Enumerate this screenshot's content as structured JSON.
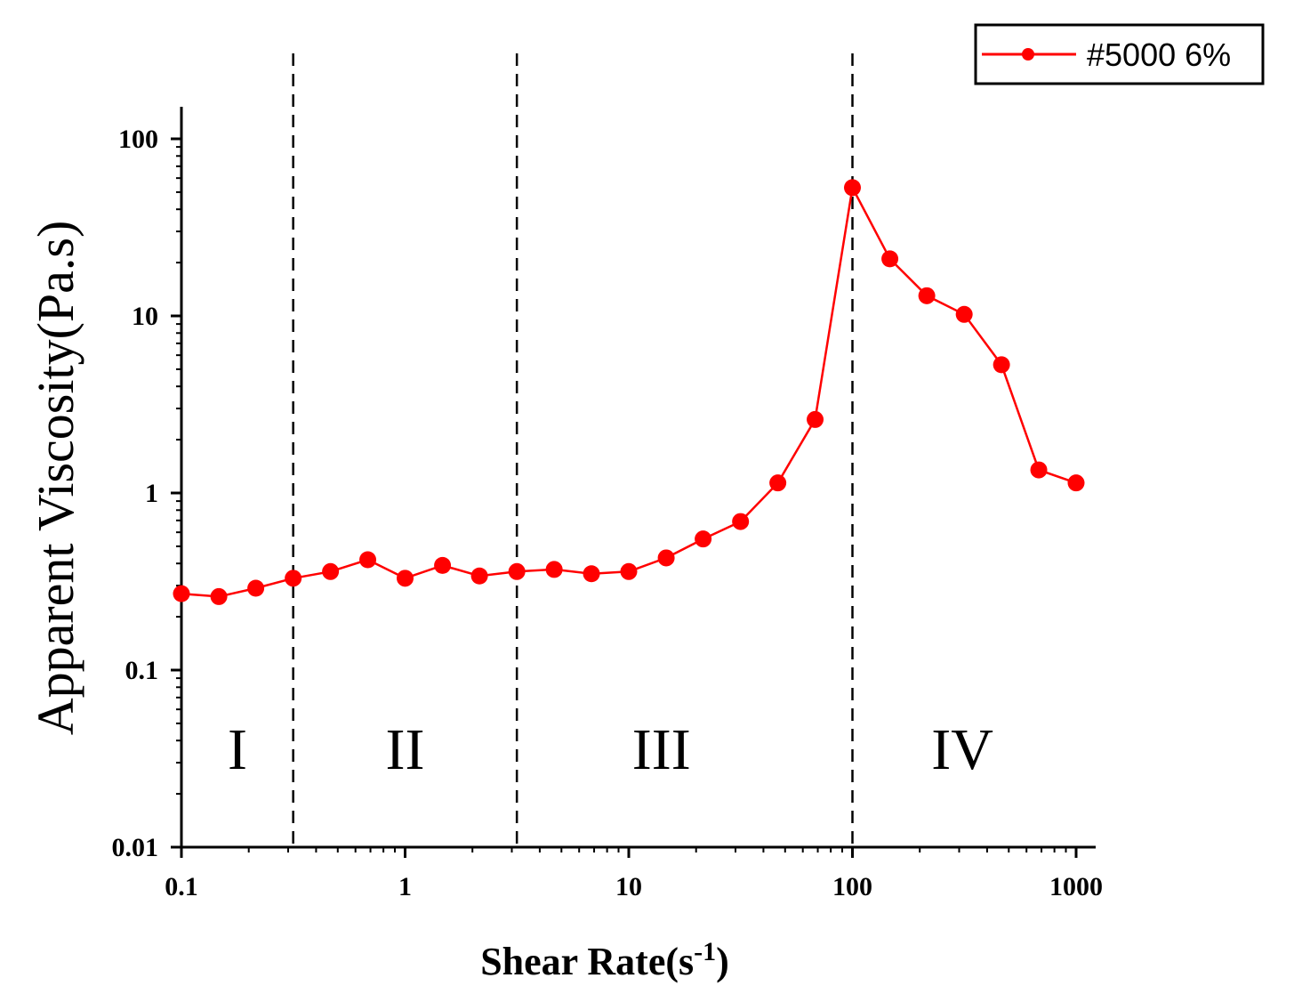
{
  "chart_data": {
    "type": "line",
    "title": "",
    "xlabel": "Shear Rate(s",
    "xlabel_sup": "-1",
    "xlabel_close": ")",
    "ylabel": "Apparent Viscosity(Pa.s)",
    "xscale": "log",
    "yscale": "log",
    "xlim": [
      0.1,
      1000
    ],
    "ylim": [
      0.01,
      100
    ],
    "x_ticks": [
      0.1,
      1,
      10,
      100,
      1000
    ],
    "x_tick_labels": [
      "0.1",
      "1",
      "10",
      "100",
      "1000"
    ],
    "y_ticks": [
      0.01,
      0.1,
      1,
      10,
      100
    ],
    "y_tick_labels": [
      "0.01",
      "0.1",
      "1",
      "10",
      "100"
    ],
    "legend_position": "top-right",
    "series": [
      {
        "name": "#5000 6%",
        "color": "#ff0000",
        "x": [
          0.1,
          0.147,
          0.215,
          0.316,
          0.464,
          0.681,
          1.0,
          1.47,
          2.15,
          3.16,
          4.64,
          6.81,
          10.0,
          14.7,
          21.5,
          31.6,
          46.4,
          68.1,
          100,
          147,
          215,
          316,
          464,
          681,
          1000
        ],
        "y": [
          0.27,
          0.26,
          0.29,
          0.33,
          0.36,
          0.42,
          0.33,
          0.39,
          0.34,
          0.36,
          0.37,
          0.35,
          0.36,
          0.43,
          0.55,
          0.69,
          1.14,
          2.6,
          53,
          21,
          13,
          10.2,
          5.3,
          1.35,
          1.14
        ]
      }
    ],
    "vertical_dividers": [
      0.316,
      3.16,
      100
    ],
    "regions": [
      {
        "label": "I",
        "x_center": 0.178
      },
      {
        "label": "II",
        "x_center": 1.0
      },
      {
        "label": "III",
        "x_center": 14.0
      },
      {
        "label": "IV",
        "x_center": 310
      }
    ]
  }
}
